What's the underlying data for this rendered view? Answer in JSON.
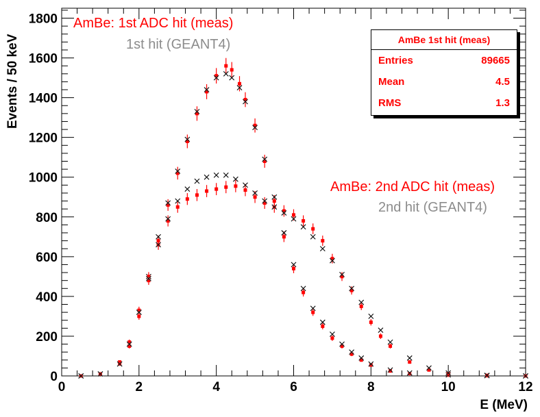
{
  "chart_data": {
    "type": "scatter",
    "title": "",
    "xlabel": "E (MeV)",
    "ylabel": "Events / 50 keV",
    "xlim": [
      0,
      12
    ],
    "ylim": [
      0,
      1850
    ],
    "x_ticks": [
      "0",
      "2",
      "4",
      "6",
      "8",
      "10",
      "12"
    ],
    "y_ticks": [
      "0",
      "200",
      "400",
      "600",
      "800",
      "1000",
      "1200",
      "1400",
      "1600",
      "1800"
    ],
    "annotations": {
      "first_meas": "AmBe: 1st ADC hit (meas)",
      "first_sim": "1st hit (GEANT4)",
      "second_meas": "AmBe: 2nd ADC hit (meas)",
      "second_sim": "2nd hit (GEANT4)"
    },
    "stats_box": {
      "title": "AmBe 1st hit (meas)",
      "rows": [
        {
          "label": "Entries",
          "value": "89665"
        },
        {
          "label": "Mean",
          "value": "4.5"
        },
        {
          "label": "RMS",
          "value": "1.3"
        }
      ]
    },
    "series": [
      {
        "name": "AmBe: 1st ADC hit (meas)",
        "color": "#ff0000",
        "marker": "square-errorbar",
        "x": [
          0.5,
          1.0,
          1.5,
          1.75,
          2.0,
          2.25,
          2.5,
          2.75,
          3.0,
          3.25,
          3.5,
          3.75,
          4.0,
          4.25,
          4.4,
          4.6,
          4.75,
          5.0,
          5.25,
          5.5,
          5.75,
          6.0,
          6.25,
          6.5,
          6.75,
          7.0,
          7.25,
          7.5,
          7.75,
          8.0,
          8.5,
          9.0,
          10.0,
          11.0,
          12.0
        ],
        "y": [
          0,
          10,
          60,
          150,
          300,
          480,
          680,
          860,
          1020,
          1180,
          1320,
          1430,
          1510,
          1560,
          1540,
          1470,
          1390,
          1260,
          1080,
          880,
          700,
          540,
          420,
          320,
          250,
          190,
          150,
          110,
          80,
          55,
          25,
          12,
          4,
          1,
          0
        ]
      },
      {
        "name": "1st hit (GEANT4)",
        "color": "#8c8c8c",
        "marker": "cross",
        "x": [
          0.5,
          1.0,
          1.5,
          1.75,
          2.0,
          2.25,
          2.5,
          2.75,
          3.0,
          3.25,
          3.5,
          3.75,
          4.0,
          4.25,
          4.4,
          4.6,
          4.75,
          5.0,
          5.25,
          5.5,
          5.75,
          6.0,
          6.25,
          6.5,
          6.75,
          7.0,
          7.25,
          7.5,
          7.75,
          8.0,
          8.5,
          9.0,
          10.0,
          11.0,
          12.0
        ],
        "y": [
          0,
          10,
          60,
          160,
          320,
          500,
          700,
          870,
          1030,
          1190,
          1330,
          1440,
          1500,
          1520,
          1500,
          1450,
          1380,
          1250,
          1090,
          900,
          720,
          560,
          440,
          340,
          270,
          210,
          160,
          120,
          90,
          60,
          30,
          15,
          5,
          1,
          0
        ]
      },
      {
        "name": "AmBe: 2nd ADC hit (meas)",
        "color": "#ff0000",
        "marker": "square-errorbar",
        "x": [
          0.5,
          1.0,
          1.5,
          1.75,
          2.0,
          2.25,
          2.5,
          2.75,
          3.0,
          3.25,
          3.5,
          3.75,
          4.0,
          4.25,
          4.5,
          4.75,
          5.0,
          5.25,
          5.5,
          5.75,
          6.0,
          6.25,
          6.5,
          6.75,
          7.0,
          7.25,
          7.5,
          7.75,
          8.0,
          8.25,
          8.5,
          9.0,
          9.5,
          10.0,
          11.0,
          12.0
        ],
        "y": [
          0,
          10,
          70,
          170,
          330,
          500,
          660,
          780,
          850,
          890,
          910,
          930,
          940,
          950,
          955,
          935,
          900,
          870,
          850,
          830,
          810,
          780,
          740,
          680,
          590,
          500,
          430,
          350,
          270,
          200,
          150,
          70,
          30,
          12,
          3,
          0
        ]
      },
      {
        "name": "2nd hit (GEANT4)",
        "color": "#8c8c8c",
        "marker": "cross",
        "x": [
          0.5,
          1.0,
          1.5,
          1.75,
          2.0,
          2.25,
          2.5,
          2.75,
          3.0,
          3.25,
          3.5,
          3.75,
          4.0,
          4.25,
          4.5,
          4.75,
          5.0,
          5.25,
          5.5,
          5.75,
          6.0,
          6.25,
          6.5,
          6.75,
          7.0,
          7.25,
          7.5,
          7.75,
          8.0,
          8.25,
          8.5,
          9.0,
          9.5,
          10.0,
          11.0,
          12.0
        ],
        "y": [
          0,
          10,
          60,
          160,
          320,
          490,
          660,
          790,
          880,
          940,
          980,
          1000,
          1010,
          1010,
          990,
          960,
          920,
          880,
          850,
          820,
          790,
          750,
          700,
          640,
          580,
          510,
          440,
          370,
          300,
          230,
          170,
          90,
          40,
          15,
          3,
          0
        ]
      }
    ]
  }
}
